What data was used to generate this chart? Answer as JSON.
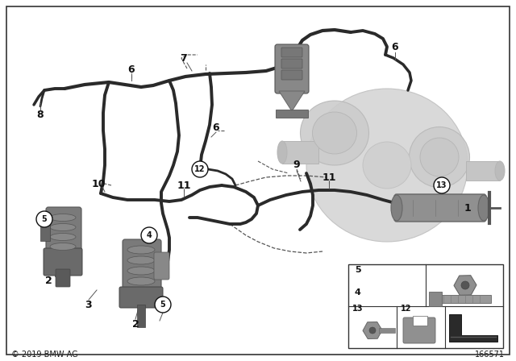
{
  "background_color": "#ffffff",
  "copyright": "© 2019 BMW AG",
  "diagram_number": "166571",
  "fig_width": 6.4,
  "fig_height": 4.48,
  "dpi": 100,
  "hose_color": "#2a2a2a",
  "hose_lw": 2.8,
  "label_fontsize": 8,
  "leader_color": "#555555",
  "turbo_fill": "#d0d0d0",
  "turbo_edge": "#b0b0b0",
  "part_fill": "#888888",
  "part_edge": "#555555"
}
